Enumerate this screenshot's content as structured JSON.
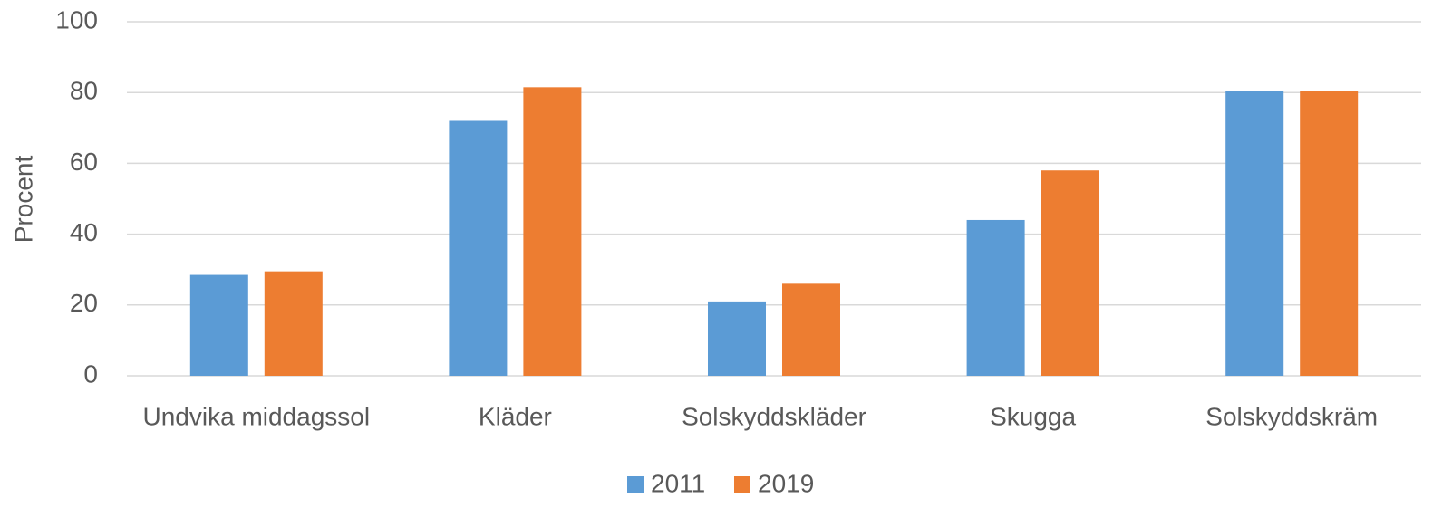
{
  "chart_data": {
    "type": "bar",
    "y_label": "Procent",
    "categories": [
      "Undvika middagssol",
      "Kläder",
      "Solskyddskläder",
      "Skugga",
      "Solskyddskräm"
    ],
    "series": [
      {
        "name": "2011",
        "color": "#5b9bd5",
        "values": [
          28.5,
          72,
          21,
          44,
          80.5
        ]
      },
      {
        "name": "2019",
        "color": "#ed7d31",
        "values": [
          29.5,
          81.5,
          26,
          58,
          80.5
        ]
      }
    ],
    "ylim": [
      0,
      100
    ],
    "yticks": [
      0,
      20,
      40,
      60,
      80,
      100
    ],
    "grid": true,
    "legend": "bottom"
  }
}
